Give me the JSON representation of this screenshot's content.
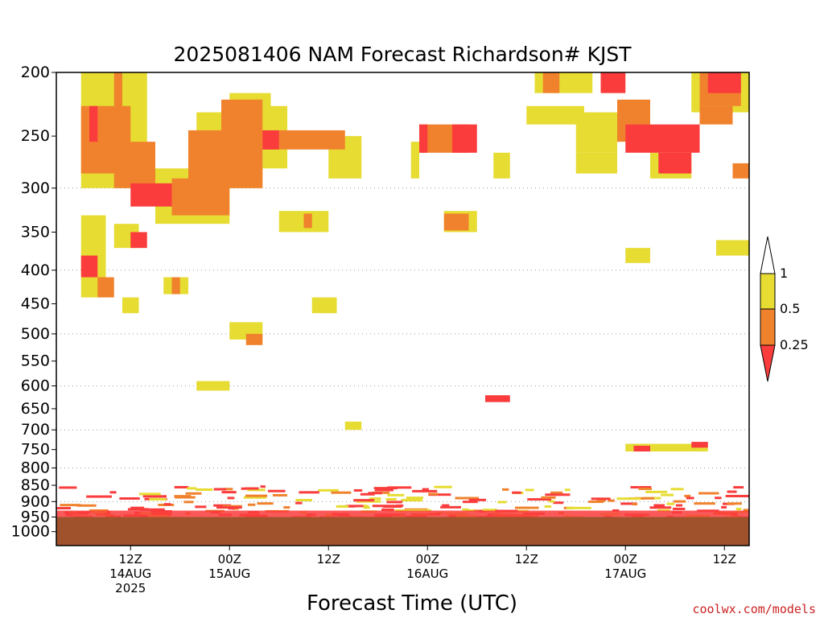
{
  "chart_data": {
    "type": "heatmap",
    "title": "2025081406 NAM Forecast Richardson# KJST",
    "xlabel": "Forecast Time (UTC)",
    "credit": "coolwx.com/models",
    "y_axis": {
      "scale": "log-pressure",
      "inverted": true,
      "range_hPa": [
        1000,
        200
      ],
      "plot_top_hPa": 200,
      "plot_bottom_hPa": 1050,
      "ticks": [
        200,
        250,
        300,
        350,
        400,
        450,
        500,
        550,
        600,
        650,
        700,
        750,
        800,
        850,
        900,
        950,
        1000
      ],
      "grid_levels": [
        300,
        400,
        500,
        600,
        700,
        800,
        900
      ]
    },
    "x_axis": {
      "range_hours": [
        -3,
        81
      ],
      "ticks": [
        {
          "hour": 6,
          "line1": "12Z",
          "line2": "14AUG",
          "line3": "2025"
        },
        {
          "hour": 18,
          "line1": "00Z",
          "line2": "15AUG",
          "line3": ""
        },
        {
          "hour": 30,
          "line1": "12Z",
          "line2": "",
          "line3": ""
        },
        {
          "hour": 42,
          "line1": "00Z",
          "line2": "16AUG",
          "line3": ""
        },
        {
          "hour": 54,
          "line1": "12Z",
          "line2": "",
          "line3": ""
        },
        {
          "hour": 66,
          "line1": "00Z",
          "line2": "17AUG",
          "line3": ""
        },
        {
          "hour": 78,
          "line1": "12Z",
          "line2": "",
          "line3": ""
        }
      ]
    },
    "legend": {
      "placement": "right",
      "labels": [
        "1",
        "0.5",
        "0.25"
      ],
      "bins": [
        {
          "range": "0.5-1",
          "color": "#e6dc32"
        },
        {
          "range": "0.25-0.5",
          "color": "#f0822d"
        },
        {
          "range": "<0.25",
          "color": "#fa3c3c"
        }
      ]
    },
    "colors": {
      "yellow": "#e6dc32",
      "orange": "#f0822d",
      "red": "#fa3c3c",
      "ground": "#a0522d"
    },
    "ground_level_hPa": 950,
    "regions": [
      {
        "t0": 0,
        "t1": 8,
        "p0": 200,
        "p1": 300,
        "c": "y"
      },
      {
        "t0": 0,
        "t1": 6,
        "p0": 225,
        "p1": 285,
        "c": "o"
      },
      {
        "t0": 1,
        "t1": 2,
        "p0": 225,
        "p1": 255,
        "c": "r"
      },
      {
        "t0": 4,
        "t1": 5,
        "p0": 200,
        "p1": 230,
        "c": "o"
      },
      {
        "t0": 4,
        "t1": 9,
        "p0": 255,
        "p1": 300,
        "c": "o"
      },
      {
        "t0": 6,
        "t1": 11,
        "p0": 295,
        "p1": 320,
        "c": "r"
      },
      {
        "t0": 9,
        "t1": 18,
        "p0": 280,
        "p1": 340,
        "c": "y"
      },
      {
        "t0": 11,
        "t1": 18,
        "p0": 290,
        "p1": 330,
        "c": "o"
      },
      {
        "t0": 13,
        "t1": 22,
        "p0": 245,
        "p1": 300,
        "c": "o"
      },
      {
        "t0": 14,
        "t1": 22,
        "p0": 230,
        "p1": 300,
        "c": "y"
      },
      {
        "t0": 17,
        "t1": 22,
        "p0": 220,
        "p1": 255,
        "c": "o"
      },
      {
        "t0": 18,
        "t1": 23,
        "p0": 215,
        "p1": 250,
        "c": "y"
      },
      {
        "t0": 22,
        "t1": 25,
        "p0": 225,
        "p1": 280,
        "c": "y"
      },
      {
        "t0": 22,
        "t1": 32,
        "p0": 245,
        "p1": 262,
        "c": "o"
      },
      {
        "t0": 22,
        "t1": 24,
        "p0": 245,
        "p1": 262,
        "c": "r"
      },
      {
        "t0": 30,
        "t1": 34,
        "p0": 250,
        "p1": 290,
        "c": "y"
      },
      {
        "t0": 0,
        "t1": 3,
        "p0": 330,
        "p1": 440,
        "c": "y"
      },
      {
        "t0": 0,
        "t1": 2,
        "p0": 380,
        "p1": 410,
        "c": "r"
      },
      {
        "t0": 4,
        "t1": 7,
        "p0": 340,
        "p1": 370,
        "c": "y"
      },
      {
        "t0": 6,
        "t1": 8,
        "p0": 350,
        "p1": 370,
        "c": "r"
      },
      {
        "t0": 2,
        "t1": 4,
        "p0": 410,
        "p1": 440,
        "c": "o"
      },
      {
        "t0": 5,
        "t1": 7,
        "p0": 440,
        "p1": 465,
        "c": "y"
      },
      {
        "t0": 10,
        "t1": 13,
        "p0": 410,
        "p1": 435,
        "c": "y"
      },
      {
        "t0": 11,
        "t1": 12,
        "p0": 410,
        "p1": 435,
        "c": "o"
      },
      {
        "t0": 18,
        "t1": 22,
        "p0": 480,
        "p1": 510,
        "c": "y"
      },
      {
        "t0": 20,
        "t1": 22,
        "p0": 500,
        "p1": 520,
        "c": "o"
      },
      {
        "t0": 14,
        "t1": 18,
        "p0": 590,
        "p1": 610,
        "c": "y"
      },
      {
        "t0": 24,
        "t1": 30,
        "p0": 325,
        "p1": 350,
        "c": "y"
      },
      {
        "t0": 27,
        "t1": 28,
        "p0": 328,
        "p1": 345,
        "c": "o"
      },
      {
        "t0": 28,
        "t1": 31,
        "p0": 440,
        "p1": 465,
        "c": "y"
      },
      {
        "t0": 32,
        "t1": 34,
        "p0": 680,
        "p1": 700,
        "c": "y"
      },
      {
        "t0": 41,
        "t1": 47,
        "p0": 240,
        "p1": 265,
        "c": "o"
      },
      {
        "t0": 41,
        "t1": 42,
        "p0": 240,
        "p1": 265,
        "c": "r"
      },
      {
        "t0": 40,
        "t1": 41,
        "p0": 255,
        "p1": 290,
        "c": "y"
      },
      {
        "t0": 45,
        "t1": 48,
        "p0": 240,
        "p1": 265,
        "c": "r"
      },
      {
        "t0": 44,
        "t1": 48,
        "p0": 325,
        "p1": 350,
        "c": "y"
      },
      {
        "t0": 44,
        "t1": 47,
        "p0": 328,
        "p1": 348,
        "c": "o"
      },
      {
        "t0": 50,
        "t1": 52,
        "p0": 265,
        "p1": 290,
        "c": "y"
      },
      {
        "t0": 49,
        "t1": 52,
        "p0": 620,
        "p1": 635,
        "c": "r"
      },
      {
        "t0": 55,
        "t1": 62,
        "p0": 200,
        "p1": 215,
        "c": "y"
      },
      {
        "t0": 56,
        "t1": 58,
        "p0": 200,
        "p1": 215,
        "c": "o"
      },
      {
        "t0": 54,
        "t1": 61,
        "p0": 225,
        "p1": 240,
        "c": "y"
      },
      {
        "t0": 60,
        "t1": 65,
        "p0": 230,
        "p1": 265,
        "c": "y"
      },
      {
        "t0": 60,
        "t1": 65,
        "p0": 265,
        "p1": 285,
        "c": "y"
      },
      {
        "t0": 63,
        "t1": 66,
        "p0": 200,
        "p1": 215,
        "c": "r"
      },
      {
        "t0": 65,
        "t1": 69,
        "p0": 220,
        "p1": 255,
        "c": "o"
      },
      {
        "t0": 66,
        "t1": 75,
        "p0": 240,
        "p1": 265,
        "c": "r"
      },
      {
        "t0": 69,
        "t1": 74,
        "p0": 265,
        "p1": 290,
        "c": "y"
      },
      {
        "t0": 70,
        "t1": 74,
        "p0": 265,
        "p1": 285,
        "c": "r"
      },
      {
        "t0": 74,
        "t1": 81,
        "p0": 200,
        "p1": 230,
        "c": "y"
      },
      {
        "t0": 75,
        "t1": 80,
        "p0": 200,
        "p1": 225,
        "c": "o"
      },
      {
        "t0": 76,
        "t1": 80,
        "p0": 200,
        "p1": 215,
        "c": "r"
      },
      {
        "t0": 75,
        "t1": 79,
        "p0": 225,
        "p1": 240,
        "c": "o"
      },
      {
        "t0": 79,
        "t1": 81,
        "p0": 275,
        "p1": 290,
        "c": "o"
      },
      {
        "t0": 66,
        "t1": 69,
        "p0": 370,
        "p1": 390,
        "c": "y"
      },
      {
        "t0": 77,
        "t1": 81,
        "p0": 360,
        "p1": 380,
        "c": "y"
      },
      {
        "t0": 66,
        "t1": 76,
        "p0": 735,
        "p1": 755,
        "c": "y"
      },
      {
        "t0": 67,
        "t1": 69,
        "p0": 740,
        "p1": 755,
        "c": "r"
      },
      {
        "t0": 74,
        "t1": 76,
        "p0": 730,
        "p1": 745,
        "c": "r"
      }
    ],
    "pbl_band": {
      "p_top": 850,
      "p_bottom": 950,
      "note": "scattered thin streaks of red/orange/yellow near the surface throughout the period"
    }
  }
}
